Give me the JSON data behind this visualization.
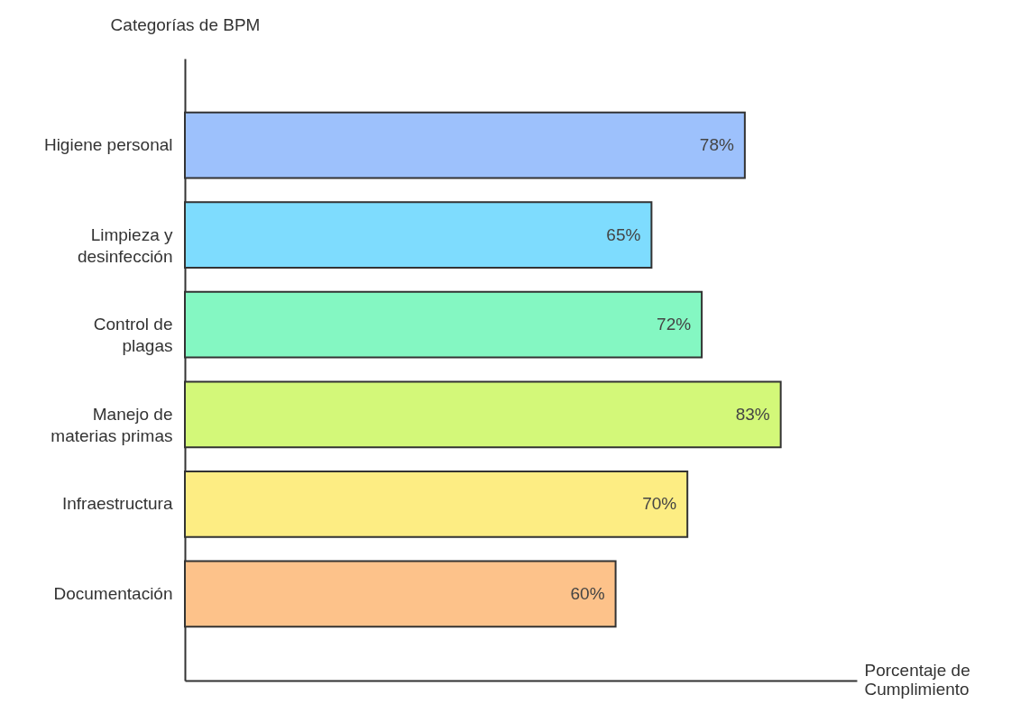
{
  "chart_data": {
    "type": "bar",
    "orientation": "horizontal",
    "ylabel": "Categorías de BPM",
    "xlabel": "Porcentaje de Cumplimiento",
    "categories": [
      "Higiene personal",
      "Limpieza y desinfección",
      "Control de plagas",
      "Manejo de materias primas",
      "Infraestructura",
      "Documentación"
    ],
    "values": [
      78,
      65,
      72,
      83,
      70,
      60
    ],
    "colors": [
      "#9dc1fc",
      "#7edcfe",
      "#84f7c2",
      "#d3f879",
      "#fded83",
      "#fdc28a"
    ],
    "value_labels": [
      "78%",
      "65%",
      "72%",
      "83%",
      "70%",
      "60%"
    ]
  }
}
